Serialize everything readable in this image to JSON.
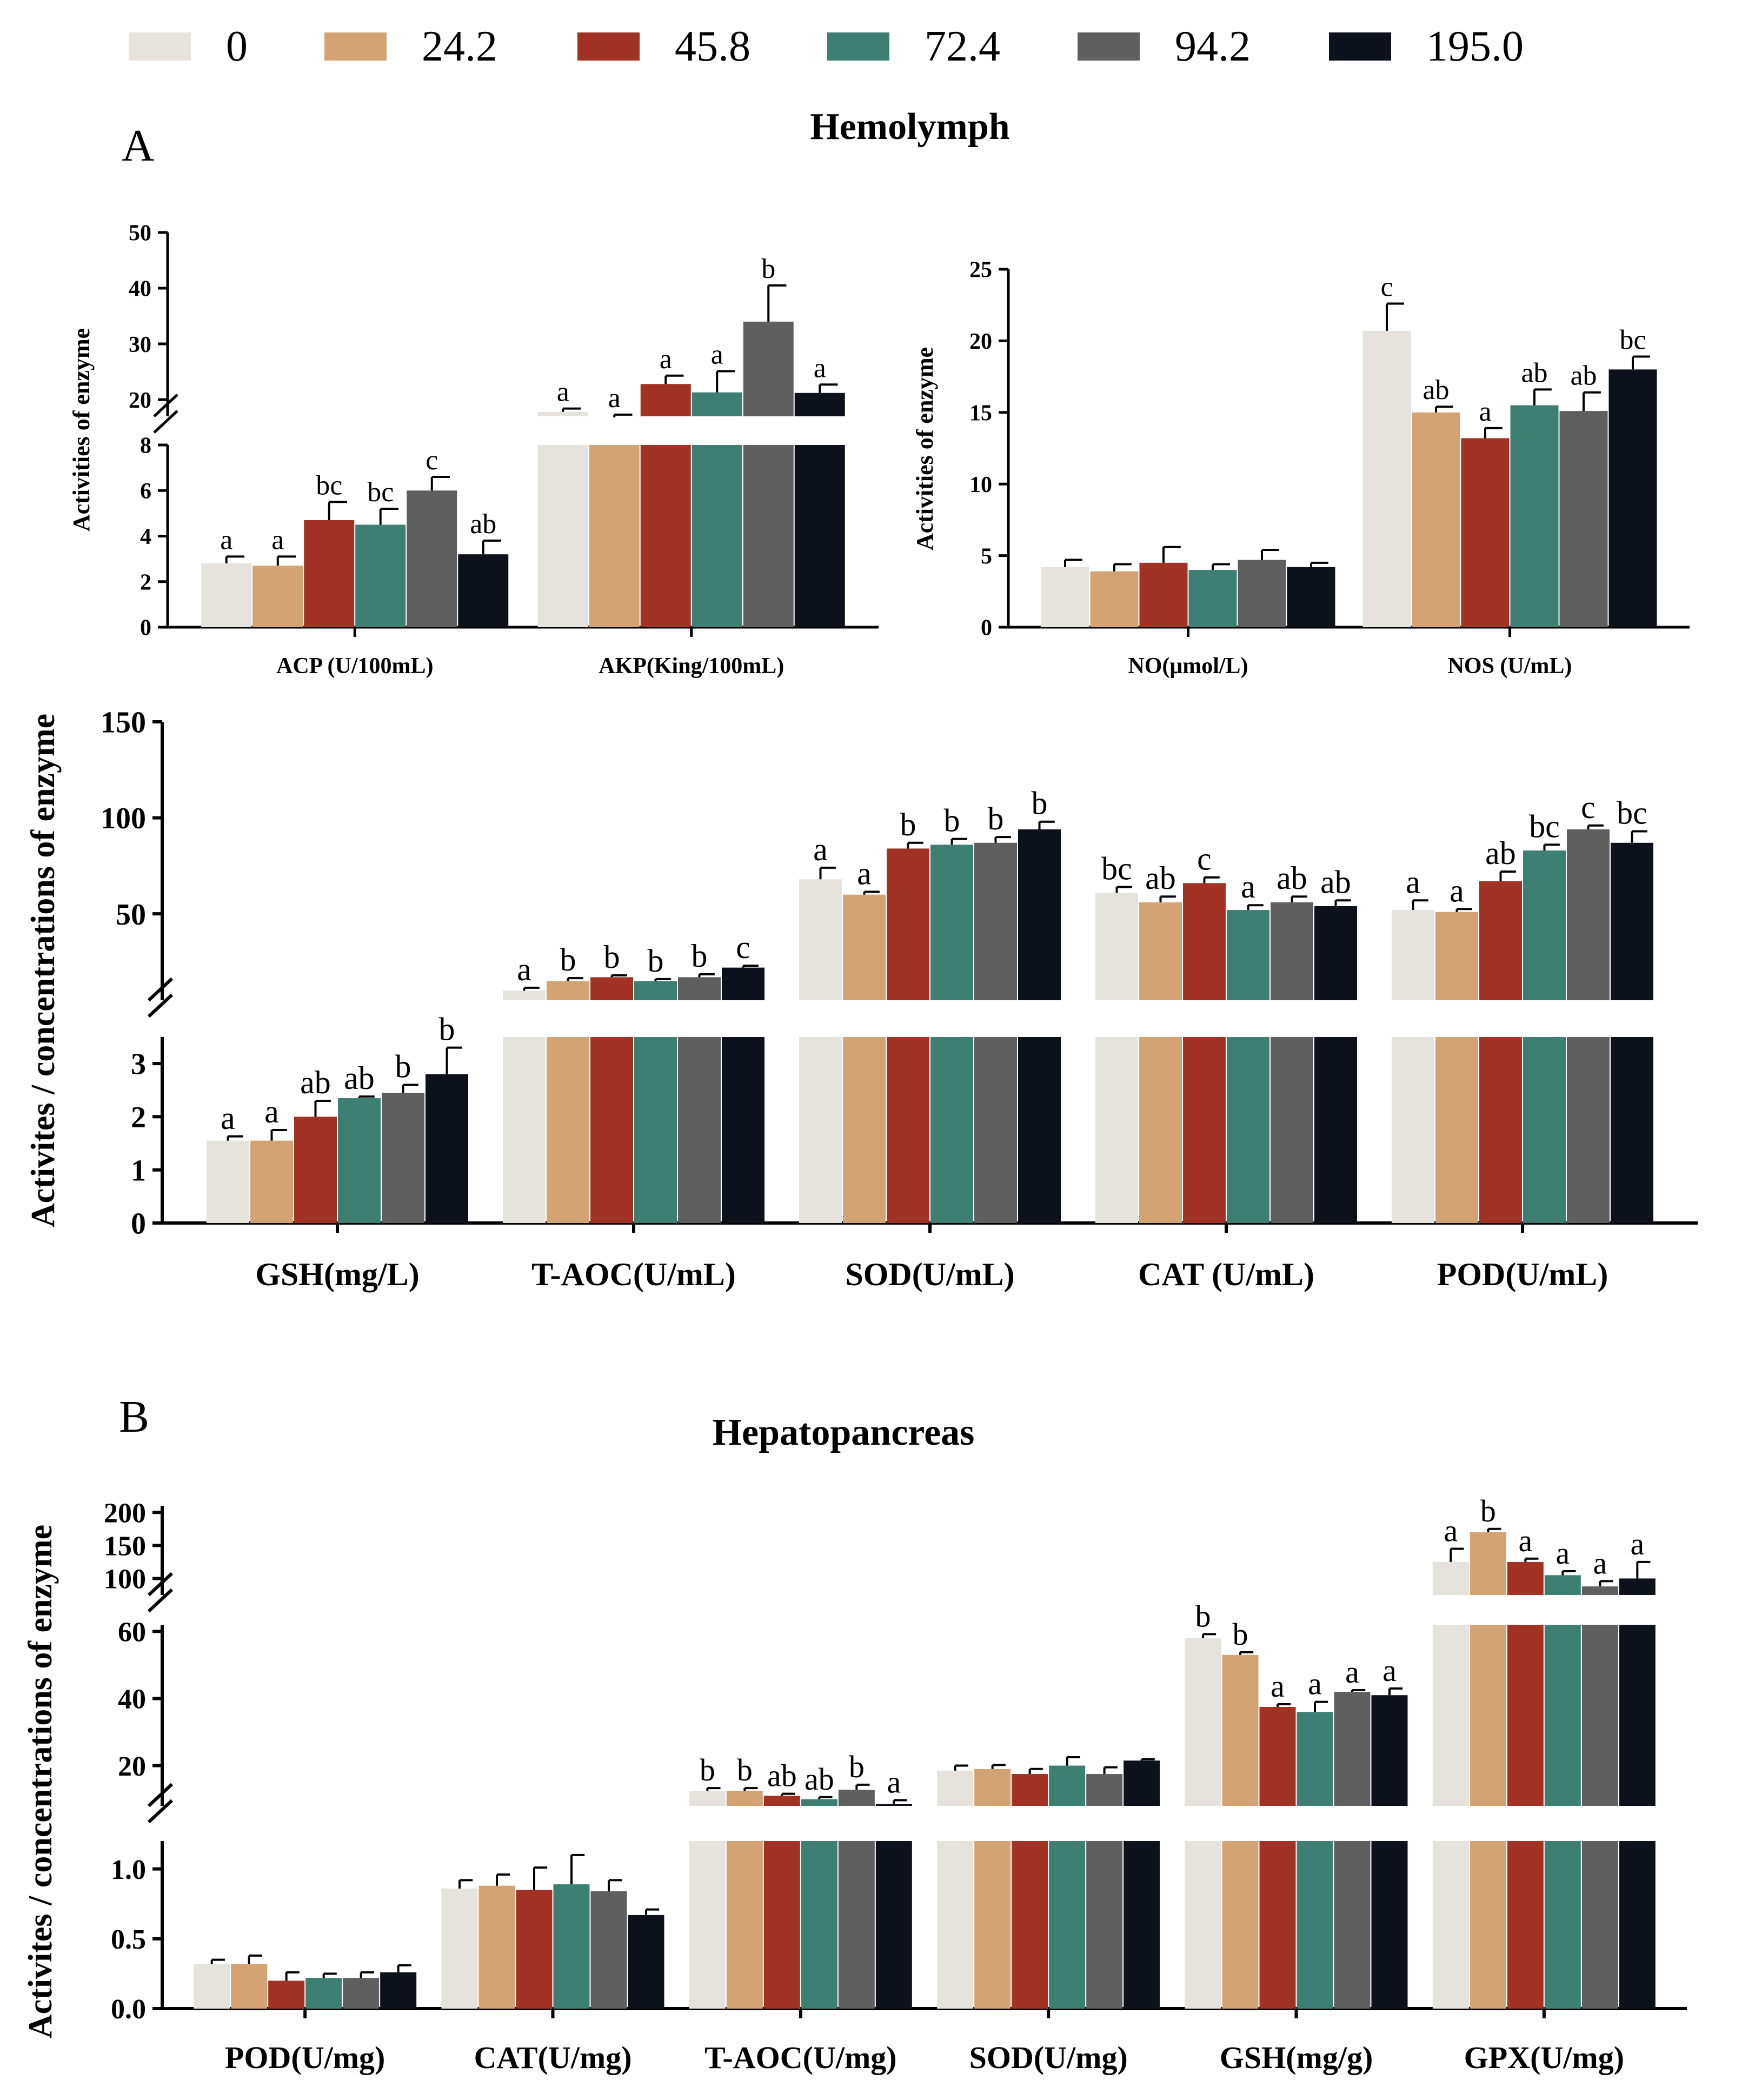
{
  "legend": {
    "entries": [
      {
        "label": "0",
        "color": "#e6e2dc"
      },
      {
        "label": "24.2",
        "color": "#d4a373"
      },
      {
        "label": "45.8",
        "color": "#a23223"
      },
      {
        "label": "72.4",
        "color": "#3e7f74"
      },
      {
        "label": "94.2",
        "color": "#5f5f5f"
      },
      {
        "label": "195.0",
        "color": "#0d111b"
      }
    ]
  },
  "panels": {
    "a_letter": "A",
    "a_title": "Hemolymph",
    "b_letter": "B",
    "b_title": "Hepatopancreas"
  },
  "chart_data": [
    {
      "id": "A1",
      "type": "bar",
      "title": "Hemolymph",
      "ylabel": "Activities of enzyme",
      "categories": [
        "ACP (U/100mL)",
        "AKP(King/100mL)"
      ],
      "y_ticks": [
        "0",
        "2",
        "4",
        "6",
        "8",
        "20",
        "30",
        "40",
        "50"
      ],
      "y_segments": [
        {
          "ylim": [
            0,
            8
          ]
        },
        {
          "ylim": [
            17,
            50
          ]
        }
      ],
      "series": [
        {
          "name": "0",
          "values": [
            2.8,
            17.8
          ],
          "errors": [
            0.3,
            0.6
          ],
          "letters": [
            "a",
            "a"
          ]
        },
        {
          "name": "24.2",
          "values": [
            2.7,
            16.8
          ],
          "errors": [
            0.4,
            0.5
          ],
          "letters": [
            "a",
            "a"
          ]
        },
        {
          "name": "45.8",
          "values": [
            4.7,
            22.8
          ],
          "errors": [
            0.8,
            1.5
          ],
          "letters": [
            "bc",
            "a"
          ]
        },
        {
          "name": "72.4",
          "values": [
            4.5,
            21.3
          ],
          "errors": [
            0.7,
            3.8
          ],
          "letters": [
            "bc",
            "a"
          ]
        },
        {
          "name": "94.2",
          "values": [
            6.0,
            34.0
          ],
          "errors": [
            0.6,
            6.5
          ],
          "letters": [
            "c",
            "b"
          ]
        },
        {
          "name": "195.0",
          "values": [
            3.2,
            21.2
          ],
          "errors": [
            0.6,
            1.5
          ],
          "letters": [
            "ab",
            "a"
          ]
        }
      ]
    },
    {
      "id": "A2",
      "type": "bar",
      "ylabel": "Activities of enzyme",
      "categories": [
        "NO(μmol/L)",
        "NOS (U/mL)"
      ],
      "y_ticks": [
        "0",
        "5",
        "10",
        "15",
        "20",
        "25"
      ],
      "ylim": [
        0,
        25
      ],
      "series": [
        {
          "name": "0",
          "values": [
            4.2,
            20.7
          ],
          "errors": [
            0.5,
            1.9
          ],
          "letters": [
            "",
            "c"
          ]
        },
        {
          "name": "24.2",
          "values": [
            3.9,
            15.0
          ],
          "errors": [
            0.5,
            0.4
          ],
          "letters": [
            "",
            "ab"
          ]
        },
        {
          "name": "45.8",
          "values": [
            4.5,
            13.2
          ],
          "errors": [
            1.1,
            0.7
          ],
          "letters": [
            "",
            "a"
          ]
        },
        {
          "name": "72.4",
          "values": [
            4.0,
            15.5
          ],
          "errors": [
            0.4,
            1.1
          ],
          "letters": [
            "",
            "ab"
          ]
        },
        {
          "name": "94.2",
          "values": [
            4.7,
            15.1
          ],
          "errors": [
            0.7,
            1.3
          ],
          "letters": [
            "",
            "ab"
          ]
        },
        {
          "name": "195.0",
          "values": [
            4.2,
            18.0
          ],
          "errors": [
            0.3,
            0.9
          ],
          "letters": [
            "",
            "bc"
          ]
        }
      ]
    },
    {
      "id": "A3",
      "type": "bar",
      "ylabel": "Activites / concentrations of enzyme",
      "categories": [
        "GSH(mg/L)",
        "T-AOC(U/mL)",
        "SOD(U/mL)",
        "CAT (U/mL)",
        "POD(U/mL)"
      ],
      "y_ticks": [
        "0",
        "1",
        "2",
        "3",
        "50",
        "100",
        "150"
      ],
      "y_segments": [
        {
          "ylim": [
            0,
            3.5
          ]
        },
        {
          "ylim": [
            5,
            150
          ]
        }
      ],
      "series": [
        {
          "name": "0",
          "values": [
            1.55,
            10,
            68,
            61,
            52
          ],
          "errors": [
            0.08,
            1.5,
            6,
            3,
            5
          ],
          "letters": [
            "a",
            "a",
            "a",
            "bc",
            "a"
          ]
        },
        {
          "name": "24.2",
          "values": [
            1.55,
            15,
            60,
            56,
            51
          ],
          "errors": [
            0.2,
            1.5,
            1.5,
            3,
            1.5
          ],
          "letters": [
            "a",
            "b",
            "a",
            "ab",
            "a"
          ]
        },
        {
          "name": "45.8",
          "values": [
            2.0,
            17,
            84,
            66,
            67
          ],
          "errors": [
            0.3,
            1.0,
            3,
            3,
            5
          ],
          "letters": [
            "ab",
            "b",
            "b",
            "c",
            "ab"
          ]
        },
        {
          "name": "72.4",
          "values": [
            2.35,
            15,
            86,
            52,
            83
          ],
          "errors": [
            0.03,
            1.0,
            3,
            2.5,
            3
          ],
          "letters": [
            "ab",
            "b",
            "b",
            "a",
            "bc"
          ]
        },
        {
          "name": "94.2",
          "values": [
            2.45,
            17,
            87,
            56,
            94
          ],
          "errors": [
            0.15,
            1.5,
            3,
            3,
            2
          ],
          "letters": [
            "b",
            "b",
            "b",
            "ab",
            "c"
          ]
        },
        {
          "name": "195.0",
          "values": [
            2.8,
            22,
            94,
            54,
            87
          ],
          "errors": [
            0.5,
            1.0,
            4,
            3,
            6
          ],
          "letters": [
            "b",
            "c",
            "b",
            "ab",
            "bc"
          ]
        }
      ]
    },
    {
      "id": "B",
      "type": "bar",
      "title": "Hepatopancreas",
      "ylabel": "Activites / concentrations of enzyme",
      "categories": [
        "POD(U/mg)",
        "CAT(U/mg)",
        "T-AOC(U/mg)",
        "SOD(U/mg)",
        "GSH(mg/g)",
        "GPX(U/mg)"
      ],
      "y_ticks": [
        "0.0",
        "0.5",
        "1.0",
        "20",
        "40",
        "60",
        "100",
        "150",
        "200"
      ],
      "y_segments": [
        {
          "ylim": [
            0,
            1.2
          ]
        },
        {
          "ylim": [
            8,
            62
          ]
        },
        {
          "ylim": [
            75,
            210
          ]
        }
      ],
      "series": [
        {
          "name": "0",
          "values": [
            0.32,
            0.86,
            12.5,
            18.5,
            58,
            125
          ],
          "errors": [
            0.03,
            0.06,
            0.8,
            1.5,
            1.2,
            20
          ],
          "letters": [
            "",
            "",
            "b",
            "",
            "b",
            "a"
          ]
        },
        {
          "name": "24.2",
          "values": [
            0.32,
            0.88,
            12.5,
            19.0,
            53,
            170
          ],
          "errors": [
            0.06,
            0.08,
            0.8,
            1.2,
            0.8,
            5
          ],
          "letters": [
            "",
            "",
            "b",
            "",
            "b",
            "b"
          ]
        },
        {
          "name": "45.8",
          "values": [
            0.2,
            0.85,
            11.0,
            17.5,
            37.5,
            125
          ],
          "errors": [
            0.06,
            0.16,
            0.6,
            1.5,
            0.8,
            5
          ],
          "letters": [
            "",
            "",
            "ab",
            "",
            "a",
            "a"
          ]
        },
        {
          "name": "72.4",
          "values": [
            0.22,
            0.89,
            10.0,
            20.0,
            36,
            105
          ],
          "errors": [
            0.03,
            0.21,
            0.6,
            2.5,
            3,
            6
          ],
          "letters": [
            "",
            "",
            "ab",
            "",
            "a",
            "a"
          ]
        },
        {
          "name": "94.2",
          "values": [
            0.22,
            0.84,
            12.8,
            17.5,
            42,
            88
          ],
          "errors": [
            0.04,
            0.08,
            1.5,
            2.0,
            0.5,
            8
          ],
          "letters": [
            "",
            "",
            "b",
            "",
            "a",
            "a"
          ]
        },
        {
          "name": "195.0",
          "values": [
            0.26,
            0.67,
            8.5,
            21.5,
            41,
            100
          ],
          "errors": [
            0.05,
            0.04,
            1.2,
            0.4,
            2,
            25
          ],
          "letters": [
            "",
            "",
            "a",
            "",
            "a",
            "a"
          ]
        }
      ]
    }
  ]
}
